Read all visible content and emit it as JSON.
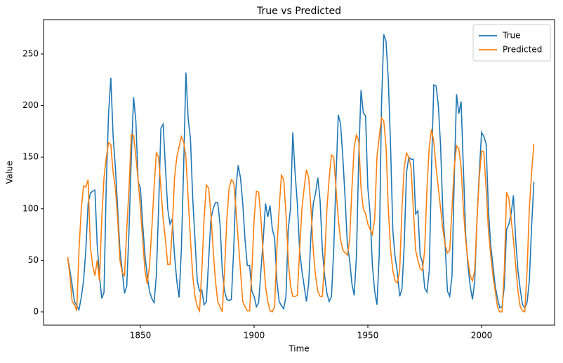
{
  "chart_data": {
    "type": "line",
    "title": "True vs Predicted",
    "xlabel": "Time",
    "ylabel": "Value",
    "x": [
      1818,
      1819,
      1820,
      1821,
      1822,
      1823,
      1824,
      1825,
      1826,
      1827,
      1828,
      1829,
      1830,
      1831,
      1832,
      1833,
      1834,
      1835,
      1836,
      1837,
      1838,
      1839,
      1840,
      1841,
      1842,
      1843,
      1844,
      1845,
      1846,
      1847,
      1848,
      1849,
      1850,
      1851,
      1852,
      1853,
      1854,
      1855,
      1856,
      1857,
      1858,
      1859,
      1860,
      1861,
      1862,
      1863,
      1864,
      1865,
      1866,
      1867,
      1868,
      1869,
      1870,
      1871,
      1872,
      1873,
      1874,
      1875,
      1876,
      1877,
      1878,
      1879,
      1880,
      1881,
      1882,
      1883,
      1884,
      1885,
      1886,
      1887,
      1888,
      1889,
      1890,
      1891,
      1892,
      1893,
      1894,
      1895,
      1896,
      1897,
      1898,
      1899,
      1900,
      1901,
      1902,
      1903,
      1904,
      1905,
      1906,
      1907,
      1908,
      1909,
      1910,
      1911,
      1912,
      1913,
      1914,
      1915,
      1916,
      1917,
      1918,
      1919,
      1920,
      1921,
      1922,
      1923,
      1924,
      1925,
      1926,
      1927,
      1928,
      1929,
      1930,
      1931,
      1932,
      1933,
      1934,
      1935,
      1936,
      1937,
      1938,
      1939,
      1940,
      1941,
      1942,
      1943,
      1944,
      1945,
      1946,
      1947,
      1948,
      1949,
      1950,
      1951,
      1952,
      1953,
      1954,
      1955,
      1956,
      1957,
      1958,
      1959,
      1960,
      1961,
      1962,
      1963,
      1964,
      1965,
      1966,
      1967,
      1968,
      1969,
      1970,
      1971,
      1972,
      1973,
      1974,
      1975,
      1976,
      1977,
      1978,
      1979,
      1980,
      1981,
      1982,
      1983,
      1984,
      1985,
      1986,
      1987,
      1988,
      1989,
      1990,
      1991,
      1992,
      1993,
      1994,
      1995,
      1996,
      1997,
      1998,
      1999,
      2000,
      2001,
      2002,
      2003,
      2004,
      2005,
      2006,
      2007,
      2008,
      2009,
      2010,
      2011,
      2012,
      2013,
      2014,
      2015,
      2016,
      2017,
      2018,
      2019,
      2020,
      2021,
      2022,
      2023
    ],
    "series": [
      {
        "name": "True",
        "color": "#1f77b4",
        "values": [
          53,
          40,
          26,
          10,
          6,
          2,
          14,
          30,
          60,
          105,
          115,
          117,
          118,
          65,
          35,
          13,
          19,
          125,
          192,
          227,
          170,
          140,
          100,
          60,
          40,
          18,
          25,
          80,
          150,
          208,
          185,
          126,
          120,
          85,
          55,
          35,
          20,
          13,
          9,
          35,
          100,
          178,
          182,
          140,
          100,
          85,
          90,
          55,
          30,
          14,
          60,
          140,
          232,
          187,
          168,
          110,
          70,
          30,
          20,
          21,
          7,
          10,
          50,
          90,
          100,
          106,
          106,
          85,
          40,
          20,
          12,
          11,
          12,
          60,
          120,
          142,
          130,
          105,
          70,
          45,
          45,
          20,
          15,
          5,
          9,
          40,
          70,
          105,
          92,
          103,
          80,
          72,
          30,
          10,
          6,
          3,
          15,
          80,
          100,
          174,
          135,
          105,
          60,
          40,
          25,
          10,
          28,
          75,
          105,
          115,
          130,
          108,
          60,
          35,
          18,
          10,
          15,
          60,
          130,
          191,
          182,
          150,
          110,
          65,
          50,
          27,
          16,
          55,
          150,
          215,
          193,
          190,
          120,
          95,
          45,
          20,
          7,
          55,
          200,
          269,
          262,
          225,
          160,
          78,
          53,
          38,
          15,
          22,
          65,
          135,
          150,
          148,
          148,
          95,
          98,
          55,
          48,
          23,
          19,
          40,
          140,
          220,
          219,
          200,
          160,
          95,
          65,
          20,
          15,
          35,
          130,
          211,
          192,
          204,
          140,
          75,
          45,
          25,
          12,
          30,
          90,
          135,
          174,
          170,
          163,
          100,
          65,
          45,
          25,
          13,
          4,
          5,
          25,
          80,
          85,
          95,
          113,
          70,
          40,
          22,
          7,
          4,
          9,
          30,
          83,
          126
        ]
      },
      {
        "name": "Predicted",
        "color": "#ff7f0e",
        "values": [
          53,
          35,
          10,
          7,
          1,
          60,
          100,
          122,
          121,
          128,
          63,
          45,
          35,
          50,
          30,
          90,
          130,
          150,
          164,
          162,
          135,
          120,
          90,
          50,
          38,
          35,
          80,
          120,
          172,
          171,
          150,
          128,
          100,
          70,
          40,
          27,
          45,
          80,
          120,
          154,
          150,
          120,
          90,
          70,
          46,
          46,
          80,
          130,
          150,
          160,
          170,
          165,
          150,
          110,
          70,
          35,
          15,
          5,
          1,
          40,
          90,
          123,
          120,
          95,
          60,
          30,
          10,
          5,
          0,
          40,
          90,
          120,
          128,
          126,
          100,
          70,
          40,
          10,
          5,
          1,
          1,
          40,
          90,
          117,
          116,
          90,
          55,
          25,
          10,
          1,
          0,
          5,
          60,
          100,
          133,
          128,
          95,
          50,
          25,
          15,
          15,
          16,
          60,
          100,
          120,
          138,
          130,
          100,
          60,
          35,
          20,
          15,
          15,
          50,
          100,
          130,
          152,
          150,
          120,
          90,
          70,
          60,
          57,
          55,
          70,
          120,
          160,
          172,
          165,
          120,
          100,
          95,
          85,
          80,
          75,
          90,
          150,
          170,
          188,
          185,
          160,
          100,
          60,
          40,
          30,
          28,
          40,
          100,
          140,
          154,
          150,
          140,
          100,
          60,
          50,
          42,
          40,
          60,
          120,
          160,
          177,
          165,
          140,
          120,
          100,
          80,
          65,
          57,
          60,
          100,
          140,
          161,
          158,
          140,
          100,
          70,
          50,
          35,
          30,
          40,
          90,
          130,
          156,
          155,
          120,
          80,
          55,
          35,
          20,
          5,
          0,
          0,
          40,
          116,
          110,
          90,
          70,
          45,
          20,
          5,
          1,
          0,
          40,
          100,
          135,
          163
        ]
      }
    ],
    "xlim": [
      1807.4,
      2032.1
    ],
    "xticks": [
      1850,
      1900,
      1950,
      2000
    ],
    "ylim": [
      -12.9,
      283.3
    ],
    "yticks": [
      0,
      50,
      100,
      150,
      200,
      250
    ],
    "legend": "upper right"
  }
}
